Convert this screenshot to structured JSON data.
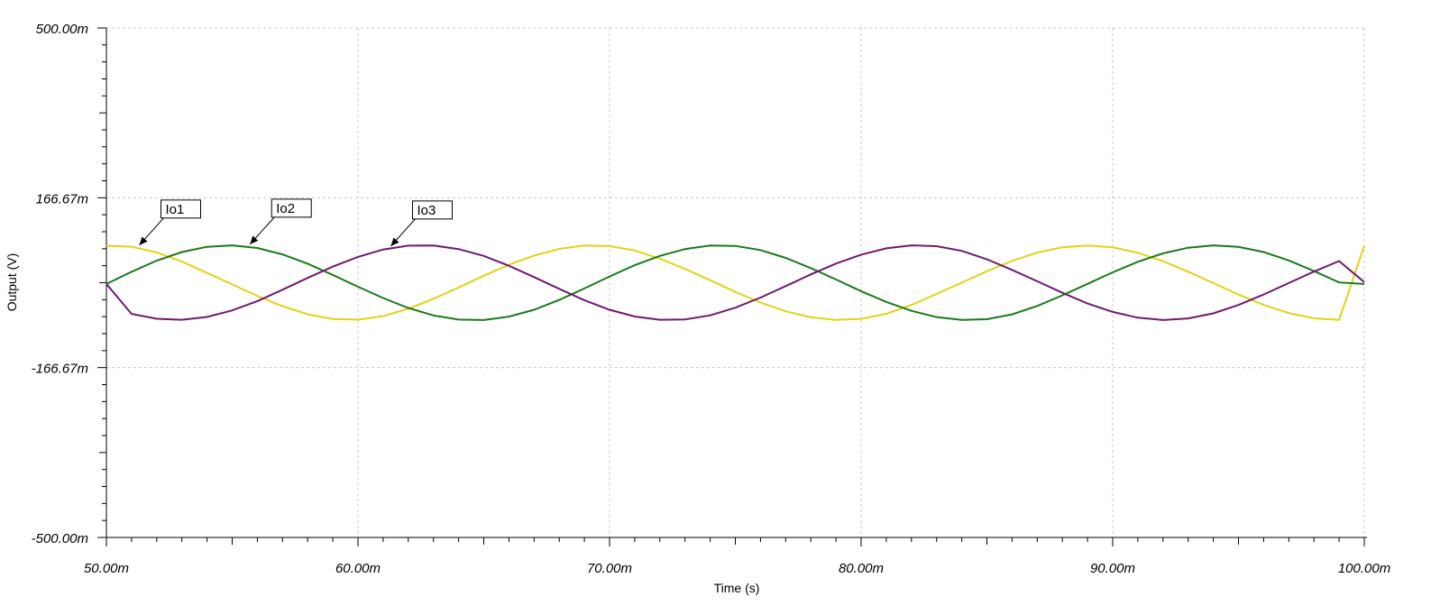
{
  "chart_data": {
    "type": "line",
    "xlabel": "Time (s)",
    "ylabel": "Output (V)",
    "xlim": [
      0.05,
      0.1
    ],
    "ylim": [
      -0.5,
      0.5
    ],
    "x_ticks": [
      0.05,
      0.06,
      0.07,
      0.08,
      0.09,
      0.1
    ],
    "x_tick_labels": [
      "50.00m",
      "60.00m",
      "70.00m",
      "80.00m",
      "90.00m",
      "100.00m"
    ],
    "y_ticks": [
      0.5,
      0.16667,
      -0.16667,
      -0.5
    ],
    "y_tick_labels": [
      "500.00m",
      "166.67m",
      "-166.67m",
      "-500.00m"
    ],
    "grid": true,
    "series": [
      {
        "name": "Io1",
        "color": "#e0d414",
        "label_x": 0.0512,
        "x": [
          0.05,
          0.051,
          0.052,
          0.053,
          0.054,
          0.055,
          0.056,
          0.057,
          0.058,
          0.059,
          0.06,
          0.061,
          0.062,
          0.063,
          0.064,
          0.065,
          0.066,
          0.067,
          0.068,
          0.069,
          0.07,
          0.071,
          0.072,
          0.073,
          0.074,
          0.075,
          0.076,
          0.077,
          0.078,
          0.079,
          0.08,
          0.081,
          0.082,
          0.083,
          0.084,
          0.085,
          0.086,
          0.087,
          0.088,
          0.089,
          0.09,
          0.091,
          0.092,
          0.093,
          0.094,
          0.095,
          0.096,
          0.097,
          0.098,
          0.099,
          0.1
        ],
        "y": [
          0.0725,
          0.0707,
          0.0595,
          0.0414,
          0.0193,
          -0.0034,
          -0.0259,
          -0.0461,
          -0.0619,
          -0.0712,
          -0.0725,
          -0.0654,
          -0.0511,
          -0.0315,
          -0.0093,
          0.0136,
          0.0352,
          0.0532,
          0.0664,
          0.0729,
          0.0719,
          0.0631,
          0.0473,
          0.0271,
          0.0047,
          -0.0181,
          -0.039,
          -0.0561,
          -0.0679,
          -0.0731,
          -0.071,
          -0.0611,
          -0.0437,
          -0.0222,
          0.0001,
          0.0225,
          0.0429,
          0.0592,
          0.0696,
          0.0731,
          0.0693,
          0.0588,
          0.0423,
          0.0216,
          -0.0007,
          -0.0232,
          -0.0435,
          -0.0597,
          -0.0699,
          -0.073,
          0.0725
        ]
      },
      {
        "name": "Io2",
        "color": "#1a7a1a",
        "label_x": 0.0556,
        "x": [
          0.05,
          0.051,
          0.052,
          0.053,
          0.054,
          0.055,
          0.056,
          0.057,
          0.058,
          0.059,
          0.06,
          0.061,
          0.062,
          0.063,
          0.064,
          0.065,
          0.066,
          0.067,
          0.068,
          0.069,
          0.07,
          0.071,
          0.072,
          0.073,
          0.074,
          0.075,
          0.076,
          0.077,
          0.078,
          0.079,
          0.08,
          0.081,
          0.082,
          0.083,
          0.084,
          0.085,
          0.086,
          0.087,
          0.088,
          0.089,
          0.09,
          0.091,
          0.092,
          0.093,
          0.094,
          0.095,
          0.096,
          0.097,
          0.098,
          0.099,
          0.1
        ],
        "y": [
          -0.0025,
          0.0214,
          0.0433,
          0.0602,
          0.0705,
          0.0732,
          0.0681,
          0.0556,
          0.0373,
          0.0153,
          -0.0079,
          -0.0301,
          -0.0495,
          -0.0642,
          -0.0724,
          -0.0733,
          -0.0665,
          -0.0531,
          -0.0338,
          -0.0113,
          0.0123,
          0.0344,
          0.0526,
          0.0661,
          0.0729,
          0.0722,
          0.064,
          0.0487,
          0.0286,
          0.0063,
          -0.0166,
          -0.0377,
          -0.0552,
          -0.0674,
          -0.0731,
          -0.0716,
          -0.0622,
          -0.0457,
          -0.0247,
          -0.0023,
          0.0203,
          0.0411,
          0.0576,
          0.0687,
          0.0732,
          0.0702,
          0.0601,
          0.0437,
          0.0229,
          0.0005,
          -0.0025
        ]
      },
      {
        "name": "Io3",
        "color": "#6e1a6e",
        "label_x": 0.0612,
        "x": [
          0.05,
          0.051,
          0.052,
          0.053,
          0.054,
          0.055,
          0.056,
          0.057,
          0.058,
          0.059,
          0.06,
          0.061,
          0.062,
          0.063,
          0.064,
          0.065,
          0.066,
          0.067,
          0.068,
          0.069,
          0.07,
          0.071,
          0.072,
          0.073,
          0.074,
          0.075,
          0.076,
          0.077,
          0.078,
          0.079,
          0.08,
          0.081,
          0.082,
          0.083,
          0.084,
          0.085,
          0.086,
          0.087,
          0.088,
          0.089,
          0.09,
          0.091,
          0.092,
          0.093,
          0.094,
          0.095,
          0.096,
          0.097,
          0.098,
          0.099,
          0.1
        ],
        "y": [
          -0.0025,
          -0.0612,
          -0.0708,
          -0.0727,
          -0.0672,
          -0.0544,
          -0.0361,
          -0.0138,
          0.0093,
          0.0315,
          0.0507,
          0.0651,
          0.0727,
          0.0731,
          0.0661,
          0.0525,
          0.0333,
          0.0109,
          -0.0121,
          -0.0344,
          -0.0531,
          -0.0663,
          -0.0728,
          -0.0721,
          -0.0641,
          -0.0491,
          -0.0292,
          -0.0068,
          0.0162,
          0.0375,
          0.0551,
          0.0675,
          0.0732,
          0.0717,
          0.0624,
          0.046,
          0.0252,
          0.0028,
          -0.0198,
          -0.0408,
          -0.0573,
          -0.0686,
          -0.0732,
          -0.0701,
          -0.0601,
          -0.0438,
          -0.0231,
          -0.0007,
          0.0218,
          0.0425,
          0.0012
        ]
      }
    ]
  }
}
